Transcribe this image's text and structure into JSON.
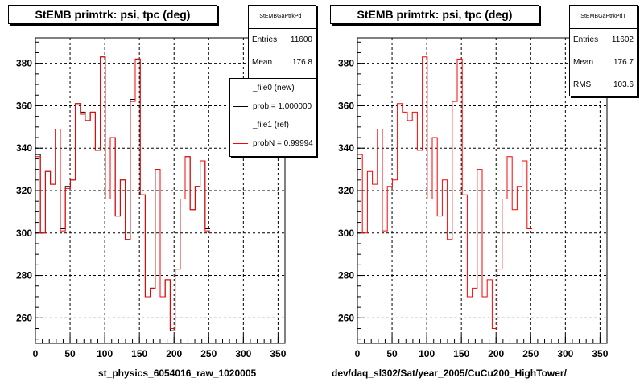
{
  "colors": {
    "new": "#000000",
    "ref": "#ff0000",
    "grid": "#000000"
  },
  "panels": [
    {
      "title": "StEMB primtrk: psi, tpc (deg)",
      "stats": {
        "name": "StEMBGaPtrkPdT",
        "rows": [
          {
            "label": "Entries",
            "value": "11600"
          },
          {
            "label": "Mean",
            "value": "176.8"
          }
        ]
      },
      "legend": [
        {
          "label": "_file0 (new)",
          "color": "#000000"
        },
        {
          "label": "prob = 1.000000",
          "color": "#000000"
        },
        {
          "label": "_file1 (ref)",
          "color": "#ff0000"
        },
        {
          "label": "probN = 0.99994",
          "color": "#ff0000"
        }
      ],
      "bottom_label": "st_physics_6054016_raw_1020005"
    },
    {
      "title": "StEMB primtrk: psi, tpc (deg)",
      "stats": {
        "name": "StEMBGaPtrkPdT",
        "rows": [
          {
            "label": "Entries",
            "value": "11602"
          },
          {
            "label": "Mean",
            "value": "176.7"
          },
          {
            "label": "RMS",
            "value": "103.6"
          }
        ]
      },
      "legend": [],
      "bottom_label": "dev/daq_sl302/Sat/year_2005/CuCu200_HighTower/"
    }
  ],
  "chart_data": [
    {
      "type": "line",
      "title": "StEMB primtrk: psi, tpc (deg)",
      "xlabel": "",
      "ylabel": "",
      "xlim": [
        0,
        360
      ],
      "ylim": [
        248,
        392
      ],
      "xticks": [
        0,
        50,
        100,
        150,
        200,
        250,
        300,
        350
      ],
      "yticks": [
        260,
        280,
        300,
        320,
        340,
        360,
        380
      ],
      "grid": true,
      "bin_width": 7.2,
      "series": [
        {
          "name": "_file0 (new)",
          "color": "#000000",
          "values": [
            337,
            300,
            329,
            323,
            349,
            302,
            322,
            325,
            361,
            357,
            353,
            357,
            339,
            383,
            316,
            345,
            308,
            325,
            297,
            363,
            382,
            318,
            270,
            274,
            330,
            270,
            278,
            254,
            283,
            316,
            336,
            311,
            322,
            334,
            302
          ]
        },
        {
          "name": "_file1 (ref)",
          "color": "#ff0000",
          "values": [
            336,
            300,
            329,
            323,
            349,
            301,
            321,
            325,
            361,
            356,
            353,
            357,
            339,
            383,
            316,
            345,
            308,
            325,
            297,
            362,
            382,
            318,
            270,
            274,
            330,
            270,
            278,
            255,
            283,
            316,
            336,
            311,
            322,
            334,
            301
          ]
        }
      ]
    },
    {
      "type": "line",
      "title": "StEMB primtrk: psi, tpc (deg)",
      "xlabel": "",
      "ylabel": "",
      "xlim": [
        0,
        360
      ],
      "ylim": [
        248,
        392
      ],
      "xticks": [
        0,
        50,
        100,
        150,
        200,
        250,
        300,
        350
      ],
      "yticks": [
        260,
        280,
        300,
        320,
        340,
        360,
        380
      ],
      "grid": true,
      "bin_width": 7.2,
      "series": [
        {
          "name": "_file1 (ref)",
          "color": "#ff0000",
          "values": [
            337,
            300,
            329,
            323,
            349,
            301,
            322,
            325,
            361,
            357,
            353,
            357,
            339,
            383,
            316,
            345,
            308,
            325,
            297,
            362,
            382,
            318,
            270,
            274,
            330,
            270,
            278,
            255,
            283,
            316,
            336,
            311,
            322,
            334,
            302
          ]
        }
      ]
    }
  ]
}
